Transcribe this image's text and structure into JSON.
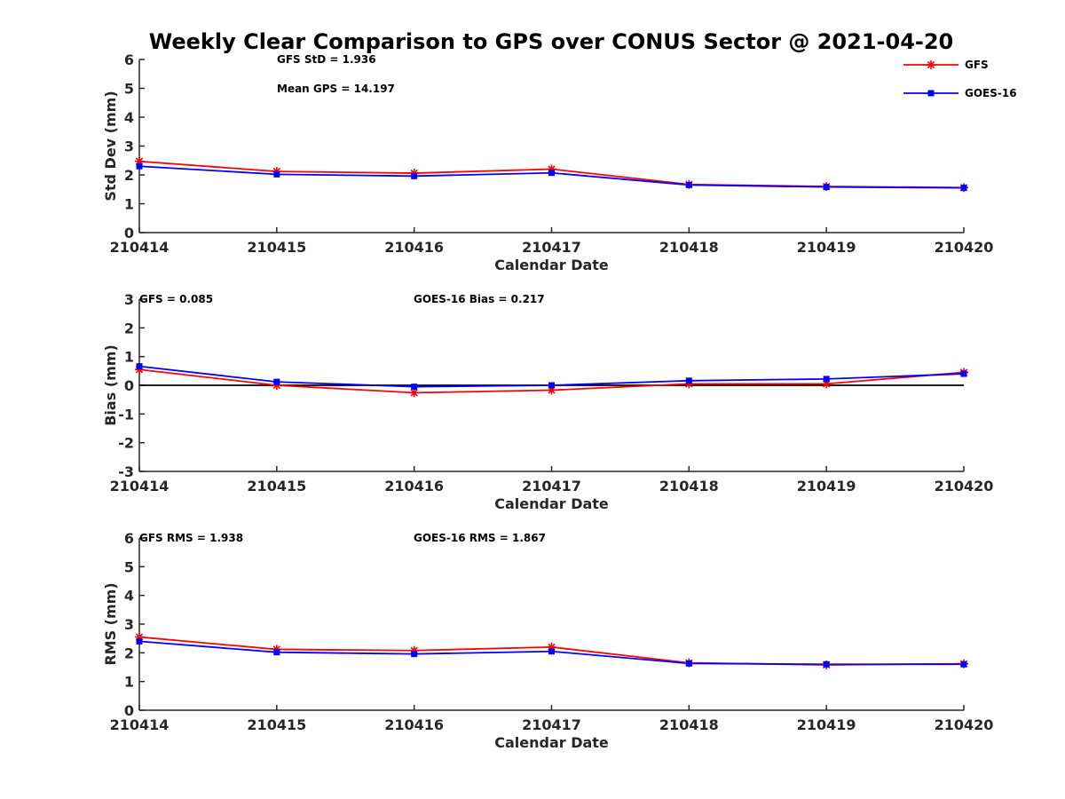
{
  "title": "Weekly Clear Comparison to GPS over CONUS Sector @ 2021-04-20",
  "colors": {
    "gfs": "#ff0000",
    "goes16": "#0000ff",
    "zero_line": "#000000"
  },
  "legend": [
    {
      "name": "GFS",
      "marker": "asterisk"
    },
    {
      "name": "GOES-16",
      "marker": "square"
    }
  ],
  "chart_data": [
    {
      "type": "line",
      "categories": [
        "210414",
        "210415",
        "210416",
        "210417",
        "210418",
        "210419",
        "210420"
      ],
      "xlabel": "Calendar Date",
      "ylabel": "Std Dev (mm)",
      "ylim": [
        0,
        6
      ],
      "yticks": [
        "0",
        "1",
        "2",
        "3",
        "4",
        "5",
        "6"
      ],
      "series": [
        {
          "name": "GFS",
          "values": [
            2.47,
            2.12,
            2.06,
            2.2,
            1.67,
            1.6,
            1.56
          ]
        },
        {
          "name": "GOES-16",
          "values": [
            2.3,
            2.02,
            1.96,
            2.07,
            1.65,
            1.58,
            1.55
          ]
        }
      ],
      "annotations": [
        "GFS StD = 1.936",
        "Mean GPS = 14.197"
      ],
      "legend": "top-right"
    },
    {
      "type": "line",
      "categories": [
        "210414",
        "210415",
        "210416",
        "210417",
        "210418",
        "210419",
        "210420"
      ],
      "xlabel": "Calendar Date",
      "ylabel": "Bias (mm)",
      "ylim": [
        -3,
        3
      ],
      "yticks": [
        "-3",
        "-2",
        "-1",
        "0",
        "1",
        "2",
        "3"
      ],
      "zero_line": true,
      "series": [
        {
          "name": "GFS",
          "values": [
            0.55,
            0.0,
            -0.26,
            -0.17,
            0.05,
            0.05,
            0.45
          ]
        },
        {
          "name": "GOES-16",
          "values": [
            0.66,
            0.12,
            -0.05,
            0.0,
            0.16,
            0.22,
            0.4
          ]
        }
      ],
      "annotations": [
        "GFS = 0.085",
        "GOES-16 Bias  = 0.217"
      ]
    },
    {
      "type": "line",
      "categories": [
        "210414",
        "210415",
        "210416",
        "210417",
        "210418",
        "210419",
        "210420"
      ],
      "xlabel": "Calendar Date",
      "ylabel": "RMS (mm)",
      "ylim": [
        0,
        6
      ],
      "yticks": [
        "0",
        "1",
        "2",
        "3",
        "4",
        "5",
        "6"
      ],
      "series": [
        {
          "name": "GFS",
          "values": [
            2.55,
            2.12,
            2.08,
            2.2,
            1.65,
            1.58,
            1.62
          ]
        },
        {
          "name": "GOES-16",
          "values": [
            2.4,
            2.02,
            1.96,
            2.05,
            1.63,
            1.6,
            1.6
          ]
        }
      ],
      "annotations": [
        "GFS RMS = 1.938",
        "GOES-16 RMS = 1.867"
      ]
    }
  ]
}
